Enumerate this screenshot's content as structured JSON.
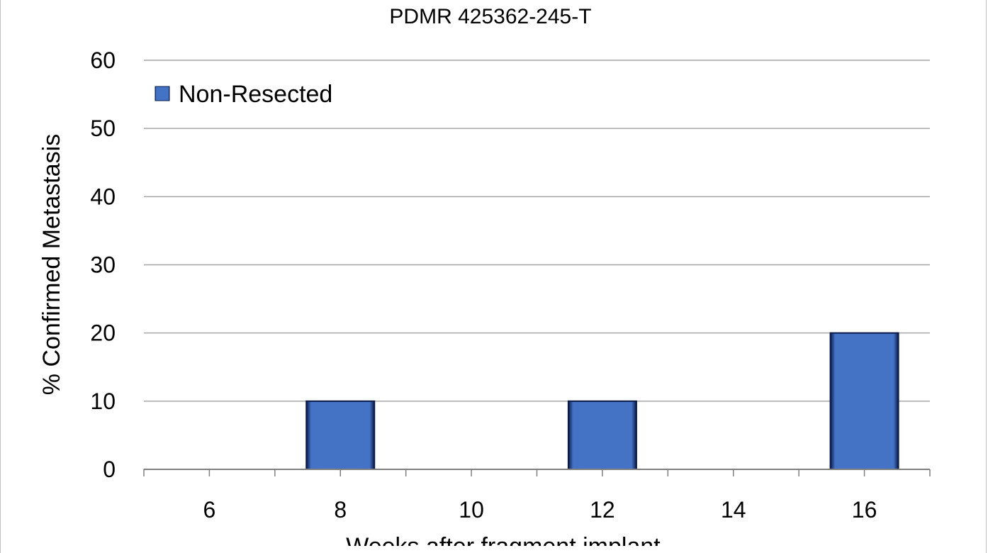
{
  "chart_data": {
    "type": "bar",
    "title": "PDMR 425362-245-T",
    "xlabel": "Weeks after fragment implant",
    "ylabel": "% Confirmed Metastasis",
    "categories": [
      "6",
      "8",
      "10",
      "12",
      "14",
      "16"
    ],
    "series": [
      {
        "name": "Non-Resected",
        "values": [
          0,
          10,
          0,
          10,
          0,
          20
        ],
        "color": "#4472c4"
      }
    ],
    "ylim": [
      0,
      60
    ],
    "yticks": [
      "0",
      "10",
      "20",
      "30",
      "40",
      "50",
      "60"
    ],
    "grid": true,
    "legend": "top-left"
  }
}
